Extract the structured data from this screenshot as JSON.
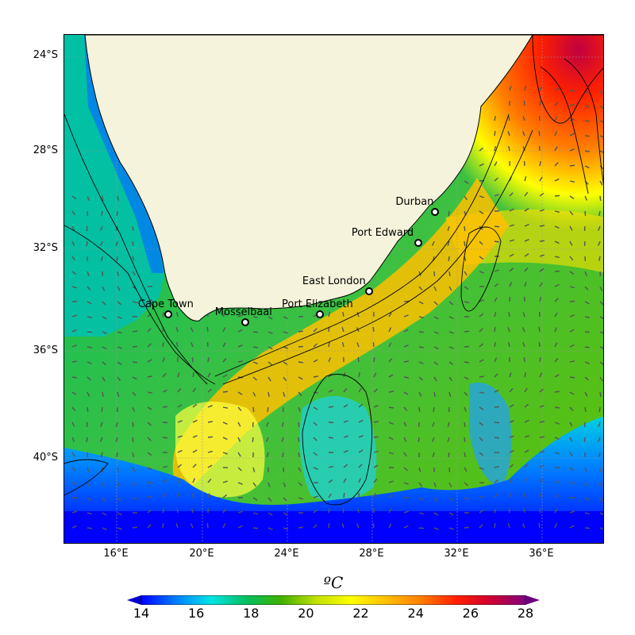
{
  "map": {
    "lat_labels": [
      "24°S",
      "28°S",
      "32°S",
      "36°S",
      "40°S"
    ],
    "lon_labels": [
      "16°E",
      "20°E",
      "24°E",
      "28°E",
      "32°E",
      "36°E"
    ],
    "extent": {
      "lon_min": 13.6,
      "lon_max": 38.9,
      "lat_min": -42.8,
      "lat_max": -23.0
    },
    "cities": [
      {
        "name": "Cape Town",
        "lon": 18.5,
        "lat": -33.9
      },
      {
        "name": "Mosselbaai",
        "lon": 22.1,
        "lat": -34.2
      },
      {
        "name": "Port Elizabeth",
        "lon": 25.6,
        "lat": -33.9
      },
      {
        "name": "East London",
        "lon": 27.9,
        "lat": -33.0
      },
      {
        "name": "Port Edward",
        "lon": 30.2,
        "lat": -31.1
      },
      {
        "name": "Durban",
        "lon": 31.0,
        "lat": -29.9
      }
    ],
    "colors": {
      "land": "#f5f3dc",
      "coast": "#000000",
      "arrows": "#555555",
      "grid": "#999999"
    }
  },
  "colorbar": {
    "unit": "ºC",
    "ticks": [
      "14",
      "16",
      "18",
      "20",
      "22",
      "24",
      "26",
      "28"
    ],
    "range": [
      14,
      28
    ],
    "colors": [
      "#0000ff",
      "#0080ff",
      "#00e5e5",
      "#00c060",
      "#40b000",
      "#c0e000",
      "#ffff00",
      "#ffc000",
      "#ff8000",
      "#ff2000",
      "#d00030",
      "#800080"
    ]
  }
}
